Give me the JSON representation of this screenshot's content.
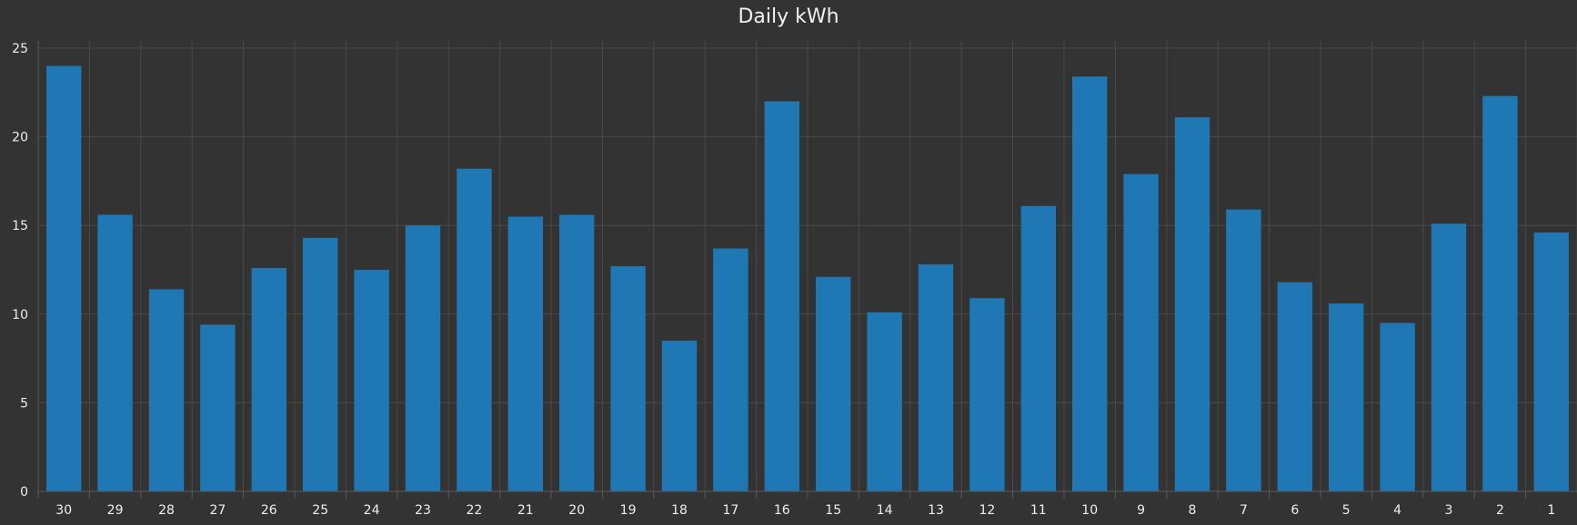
{
  "chart_data": {
    "type": "bar",
    "title": "Daily kWh",
    "xlabel": "",
    "ylabel": "",
    "categories": [
      "30",
      "29",
      "28",
      "27",
      "26",
      "25",
      "24",
      "23",
      "22",
      "21",
      "20",
      "19",
      "18",
      "17",
      "16",
      "15",
      "14",
      "13",
      "12",
      "11",
      "10",
      "9",
      "8",
      "7",
      "6",
      "5",
      "4",
      "3",
      "2",
      "1"
    ],
    "values": [
      24.0,
      15.6,
      11.4,
      9.4,
      12.6,
      14.3,
      12.5,
      15.0,
      18.2,
      15.5,
      15.6,
      12.7,
      8.5,
      13.7,
      22.0,
      12.1,
      10.1,
      12.8,
      10.9,
      16.1,
      23.4,
      17.9,
      21.1,
      15.9,
      11.8,
      10.6,
      9.5,
      15.1,
      22.3,
      14.6
    ],
    "yticks": [
      "0",
      "5",
      "10",
      "15",
      "20",
      "25"
    ],
    "ylim": [
      0,
      25
    ],
    "grid": true,
    "legend": "none",
    "colors": {
      "bar": "#1f77b4",
      "background": "#333333",
      "grid": "#4a4a4a",
      "text": "#eeeeee"
    }
  }
}
